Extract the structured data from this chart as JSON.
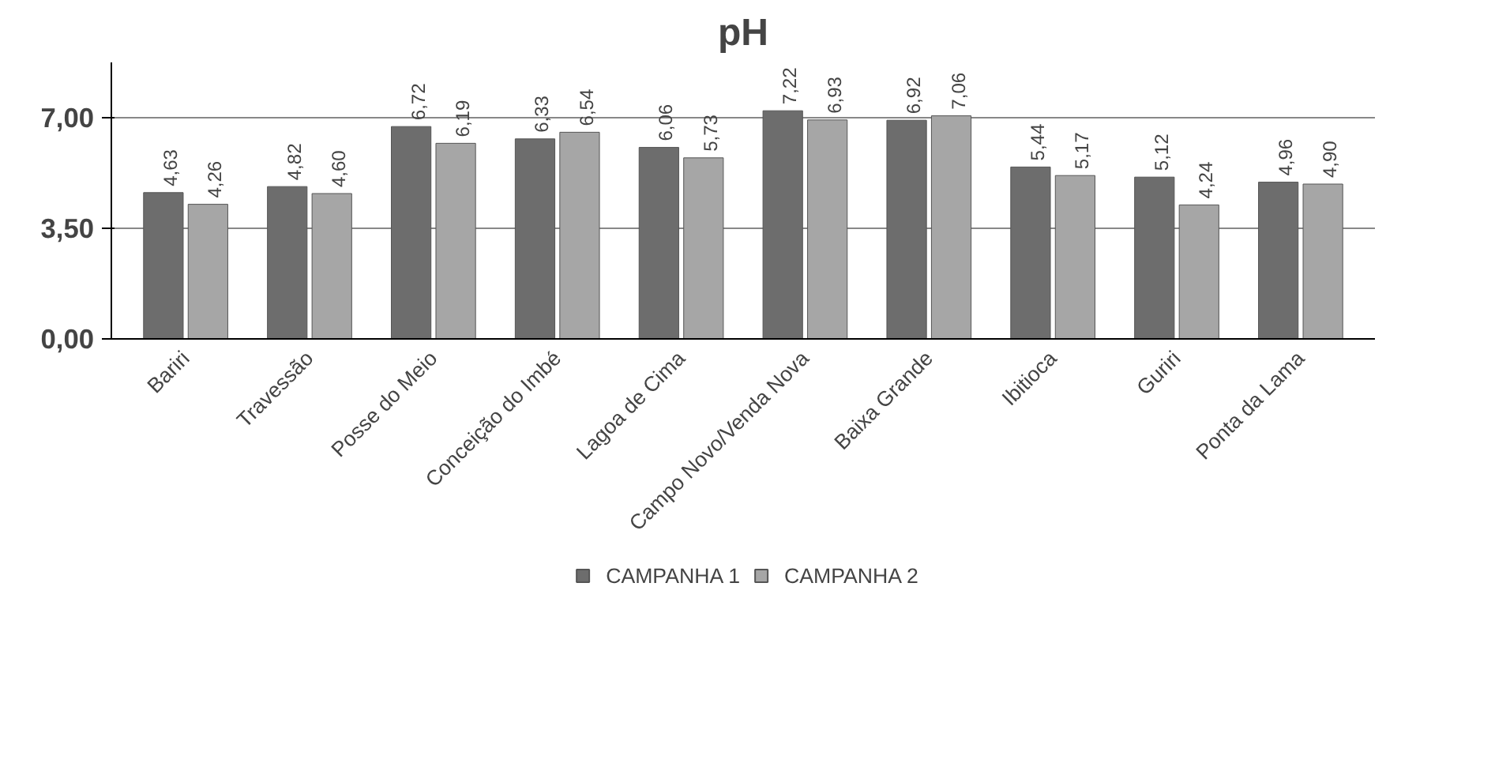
{
  "chart_data": {
    "type": "bar",
    "title": "pH",
    "categories": [
      "Bariri",
      "Travessão",
      "Posse do Meio",
      "Conceição do Imbé",
      "Lagoa de Cima",
      "Campo Novo/Venda Nova",
      "Baixa Grande",
      "Ibitioca",
      "Guriri",
      "Ponta da Lama"
    ],
    "series": [
      {
        "name": "CAMPANHA 1",
        "color": "#6d6d6d",
        "values": [
          4.63,
          4.82,
          6.72,
          6.33,
          6.06,
          7.22,
          6.92,
          5.44,
          5.12,
          4.96
        ],
        "value_labels": [
          "4,63",
          "4,82",
          "6,72",
          "6,33",
          "6,06",
          "7,22",
          "6,92",
          "5,44",
          "5,12",
          "4,96"
        ]
      },
      {
        "name": "CAMPANHA 2",
        "color": "#a6a6a6",
        "values": [
          4.26,
          4.6,
          6.19,
          6.54,
          5.73,
          6.93,
          7.06,
          5.17,
          4.24,
          4.9
        ],
        "value_labels": [
          "4,26",
          "4,60",
          "6,19",
          "6,54",
          "5,73",
          "6,93",
          "7,06",
          "5,17",
          "4,24",
          "4,90"
        ]
      }
    ],
    "ylim": [
      0,
      8.75
    ],
    "yticks": [
      {
        "value": 0,
        "label": "0,00"
      },
      {
        "value": 3.5,
        "label": "3,50"
      },
      {
        "value": 7,
        "label": "7,00"
      }
    ],
    "grid": "y",
    "legend": "bottom"
  }
}
